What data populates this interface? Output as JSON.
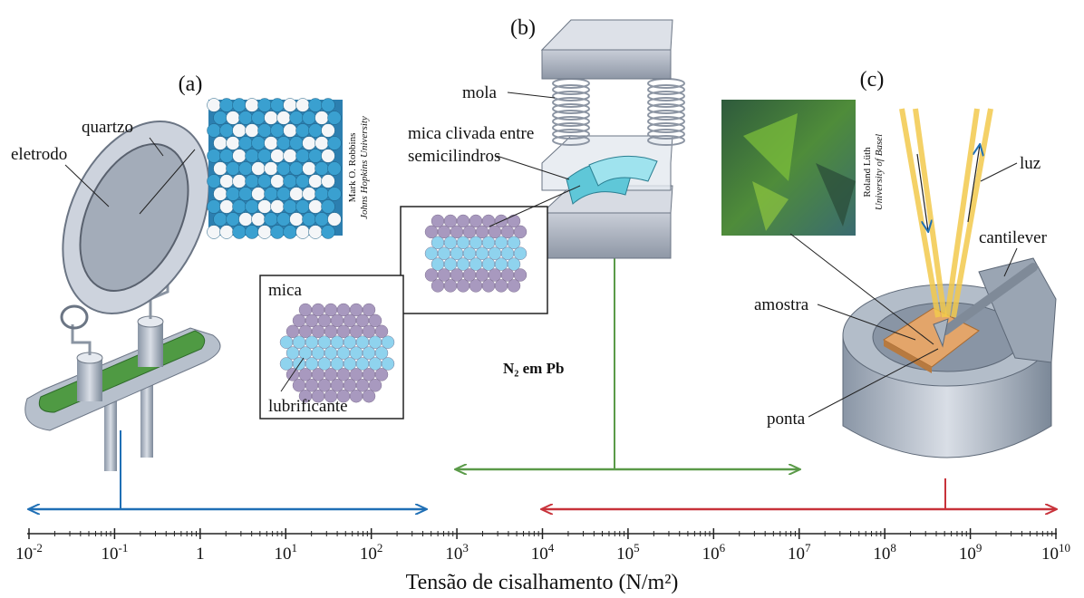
{
  "panel_a": {
    "label": "(a)",
    "quartz": "quartzo",
    "electrode": "eletrodo",
    "credit_name": "Mark O. Robbins",
    "credit_affiliation": "Johns Hopkins University"
  },
  "panel_b": {
    "label": "(b)",
    "spring": "mola",
    "mica_cleaved": [
      "mica clivada entre",
      "semicilindros"
    ],
    "inset_mica": "mica",
    "inset_lubricant": "lubrificante",
    "range_label": "N₂ em Pb"
  },
  "panel_c": {
    "label": "(c)",
    "credit_name": "Roland Lüth",
    "credit_affiliation": "University of Basel",
    "light": "luz",
    "cantilever": "cantilever",
    "sample": "amostra",
    "tip": "ponta"
  },
  "axis": {
    "title": "Tensão de cisalhamento (N/m²)",
    "ticks": [
      {
        "base": "10",
        "exponent": "-2"
      },
      {
        "base": "10",
        "exponent": "-1"
      },
      {
        "base": "1"
      },
      {
        "base": "10",
        "exponent": "1"
      },
      {
        "base": "10",
        "exponent": "2"
      },
      {
        "base": "10",
        "exponent": "3"
      },
      {
        "base": "10",
        "exponent": "4"
      },
      {
        "base": "10",
        "exponent": "5"
      },
      {
        "base": "10",
        "exponent": "6"
      },
      {
        "base": "10",
        "exponent": "7"
      },
      {
        "base": "10",
        "exponent": "8"
      },
      {
        "base": "10",
        "exponent": "9"
      },
      {
        "base": "10",
        "exponent": "10"
      }
    ]
  }
}
